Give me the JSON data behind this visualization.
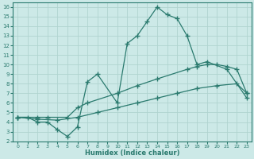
{
  "background_color": "#cce9e7",
  "grid_color": "#b0d4d0",
  "line_color": "#2a7a6e",
  "xlim": [
    -0.5,
    23.5
  ],
  "ylim": [
    2,
    16.5
  ],
  "xticks": [
    0,
    1,
    2,
    3,
    4,
    5,
    6,
    7,
    8,
    9,
    10,
    11,
    12,
    13,
    14,
    15,
    16,
    17,
    18,
    19,
    20,
    21,
    22,
    23
  ],
  "yticks": [
    2,
    3,
    4,
    5,
    6,
    7,
    8,
    9,
    10,
    11,
    12,
    13,
    14,
    15,
    16
  ],
  "xlabel": "Humidex (Indice chaleur)",
  "line1_x": [
    0,
    1,
    2,
    3,
    4,
    5,
    6,
    7,
    8,
    10,
    11,
    12,
    13,
    14,
    15,
    16,
    17,
    18,
    19,
    21,
    23
  ],
  "line1_y": [
    4.5,
    4.5,
    4.0,
    4.0,
    3.2,
    2.5,
    3.5,
    8.2,
    9.0,
    6.0,
    12.2,
    13.0,
    14.5,
    16.0,
    15.2,
    14.8,
    13.0,
    10.0,
    10.3,
    9.5,
    6.5
  ],
  "line2_x": [
    0,
    2,
    3,
    5,
    6,
    7,
    10,
    12,
    14,
    17,
    18,
    19,
    20,
    21,
    22,
    23
  ],
  "line2_y": [
    4.5,
    4.5,
    4.5,
    4.5,
    5.5,
    6.0,
    7.0,
    7.8,
    8.5,
    9.5,
    9.8,
    10.0,
    10.0,
    9.8,
    9.5,
    7.0
  ],
  "line3_x": [
    0,
    2,
    4,
    6,
    8,
    10,
    12,
    14,
    16,
    18,
    20,
    22,
    23
  ],
  "line3_y": [
    4.5,
    4.3,
    4.2,
    4.5,
    5.0,
    5.5,
    6.0,
    6.5,
    7.0,
    7.5,
    7.8,
    8.0,
    7.0
  ]
}
